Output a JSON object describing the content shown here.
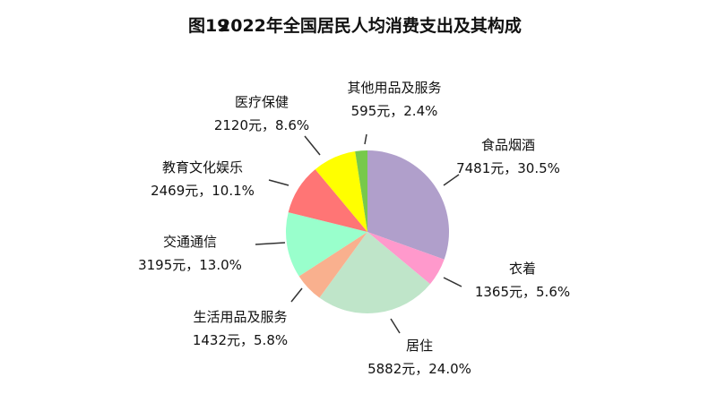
{
  "chart_data": {
    "type": "pie",
    "figure_number": "图19",
    "title": "2022年全国居民人均消费支出及其构成",
    "start": "top",
    "direction": "clockwise",
    "slices": [
      {
        "label": "食品烟酒",
        "value": 7481,
        "value_text": "7481元，30.5%",
        "percent": 30.5,
        "color": "#b09fcb"
      },
      {
        "label": "衣着",
        "value": 1365,
        "value_text": "1365元，5.6%",
        "percent": 5.6,
        "color": "#ff99cc"
      },
      {
        "label": "居住",
        "value": 5882,
        "value_text": "5882元，24.0%",
        "percent": 24.0,
        "color": "#bfe5c9"
      },
      {
        "label": "生活用品及服务",
        "value": 1432,
        "value_text": "1432元，5.8%",
        "percent": 5.8,
        "color": "#f9b08e"
      },
      {
        "label": "交通通信",
        "value": 3195,
        "value_text": "3195元，13.0%",
        "percent": 13.0,
        "color": "#99ffcc"
      },
      {
        "label": "教育文化娱乐",
        "value": 2469,
        "value_text": "2469元，10.1%",
        "percent": 10.1,
        "color": "#ff7575"
      },
      {
        "label": "医疗保健",
        "value": 2120,
        "value_text": "2120元，8.6%",
        "percent": 8.6,
        "color": "#ffff00"
      },
      {
        "label": "其他用品及服务",
        "value": 595,
        "value_text": "595元，2.4%",
        "percent": 2.4,
        "color": "#77c94b"
      }
    ]
  }
}
